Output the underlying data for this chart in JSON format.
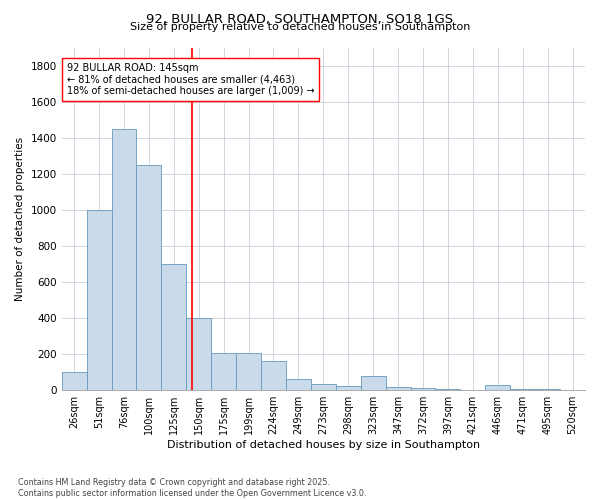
{
  "title": "92, BULLAR ROAD, SOUTHAMPTON, SO18 1GS",
  "subtitle": "Size of property relative to detached houses in Southampton",
  "xlabel": "Distribution of detached houses by size in Southampton",
  "ylabel": "Number of detached properties",
  "bar_color": "#c9daea",
  "bar_edge_color": "#6699bb",
  "categories": [
    "26sqm",
    "51sqm",
    "76sqm",
    "100sqm",
    "125sqm",
    "150sqm",
    "175sqm",
    "199sqm",
    "224sqm",
    "249sqm",
    "273sqm",
    "298sqm",
    "323sqm",
    "347sqm",
    "372sqm",
    "397sqm",
    "421sqm",
    "446sqm",
    "471sqm",
    "495sqm",
    "520sqm"
  ],
  "values": [
    100,
    1000,
    1450,
    1250,
    700,
    400,
    205,
    205,
    160,
    60,
    35,
    25,
    80,
    20,
    10,
    5,
    0,
    30,
    5,
    5,
    0
  ],
  "property_size_label": "92 BULLAR ROAD: 145sqm",
  "pct_smaller": "← 81% of detached houses are smaller (4,463)",
  "pct_larger": "18% of semi-detached houses are larger (1,009) →",
  "vline_position": 4.72,
  "ylim": [
    0,
    1900
  ],
  "yticks": [
    0,
    200,
    400,
    600,
    800,
    1000,
    1200,
    1400,
    1600,
    1800
  ],
  "footer_line1": "Contains HM Land Registry data © Crown copyright and database right 2025.",
  "footer_line2": "Contains public sector information licensed under the Open Government Licence v3.0.",
  "background_color": "#ffffff",
  "grid_color": "#c8d0dc"
}
